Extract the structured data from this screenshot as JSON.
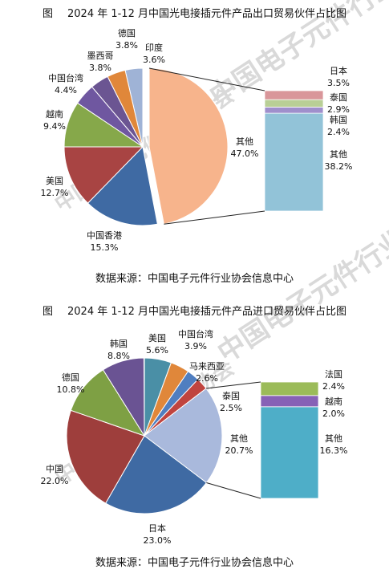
{
  "watermark": "中国电子元件行业协会",
  "charts": [
    {
      "fig_label": "图",
      "title": "2024 年 1-12 月中国光电接插元件产品出口贸易伙伴占比图",
      "source": "数据来源：中国电子元件行业协会信息中心",
      "subtotal_label": "其他",
      "subtotal_value": "47.0%",
      "slices": [
        {
          "name": "印度",
          "value": "3.6%",
          "color": "#9fb3d6"
        },
        {
          "name": "德国",
          "value": "3.8%",
          "color": "#e0873a"
        },
        {
          "name": "墨西哥",
          "value": "3.8%",
          "color": "#6b5592"
        },
        {
          "name": "中国台湾",
          "value": "4.4%",
          "color": "#6f57a0"
        },
        {
          "name": "越南",
          "value": "9.4%",
          "color": "#86a84a"
        },
        {
          "name": "美国",
          "value": "12.7%",
          "color": "#a84443"
        },
        {
          "name": "中国香港",
          "value": "15.3%",
          "color": "#3f6aa3"
        }
      ],
      "bar": [
        {
          "name": "其他",
          "value": "38.2%",
          "color": "#92c3d8"
        },
        {
          "name": "韩国",
          "value": "2.4%",
          "color": "#9f8fcc"
        },
        {
          "name": "泰国",
          "value": "2.9%",
          "color": "#b9cf96"
        },
        {
          "name": "日本",
          "value": "3.5%",
          "color": "#d9969a"
        }
      ],
      "other_color": "#f7b48c"
    },
    {
      "fig_label": "图",
      "title": "2024 年 1-12 月中国光电接插元件产品进口贸易伙伴占比图",
      "source": "数据来源：中国电子元件行业协会信息中心",
      "subtotal_label": "其他",
      "subtotal_value": "20.7%",
      "slices": [
        {
          "name": "美国",
          "value": "5.6%",
          "color": "#4a8fa6"
        },
        {
          "name": "中国台湾",
          "value": "3.9%",
          "color": "#e0873a"
        },
        {
          "name": "马来西亚",
          "value": "2.6%",
          "color": "#4f7ec0"
        },
        {
          "name": "泰国",
          "value": "2.5%",
          "color": "#c0443f"
        },
        {
          "name": "日本",
          "value": "23.0%",
          "color": "#3f6aa3"
        },
        {
          "name": "中国",
          "value": "22.0%",
          "color": "#9e3e3c"
        },
        {
          "name": "德国",
          "value": "10.8%",
          "color": "#7ea044"
        },
        {
          "name": "韩国",
          "value": "8.8%",
          "color": "#6a5393"
        }
      ],
      "bar": [
        {
          "name": "其他",
          "value": "16.3%",
          "color": "#4eaec8"
        },
        {
          "name": "越南",
          "value": "2.0%",
          "color": "#8761b6"
        },
        {
          "name": "法国",
          "value": "2.4%",
          "color": "#9bbb59"
        }
      ],
      "other_color": "#a9b9dc"
    }
  ],
  "chart_data": [
    {
      "type": "pie",
      "title": "2024 年 1-12 月中国光电接插元件产品出口贸易伙伴占比图",
      "categories": [
        "印度",
        "德国",
        "墨西哥",
        "中国台湾",
        "越南",
        "美国",
        "中国香港",
        "其他"
      ],
      "values": [
        3.6,
        3.8,
        3.8,
        4.4,
        9.4,
        12.7,
        15.3,
        47.0
      ],
      "breakdown_of": "其他",
      "breakdown": {
        "categories": [
          "日本",
          "泰国",
          "韩国",
          "其他"
        ],
        "values": [
          3.5,
          2.9,
          2.4,
          38.2
        ]
      }
    },
    {
      "type": "pie",
      "title": "2024 年 1-12 月中国光电接插元件产品进口贸易伙伴占比图",
      "categories": [
        "美国",
        "中国台湾",
        "马来西亚",
        "泰国",
        "其他",
        "日本",
        "中国",
        "德国",
        "韩国"
      ],
      "values": [
        5.6,
        3.9,
        2.6,
        2.5,
        20.7,
        23.0,
        22.0,
        10.8,
        8.8
      ],
      "breakdown_of": "其他",
      "breakdown": {
        "categories": [
          "法国",
          "越南",
          "其他"
        ],
        "values": [
          2.4,
          2.0,
          16.3
        ]
      }
    }
  ]
}
